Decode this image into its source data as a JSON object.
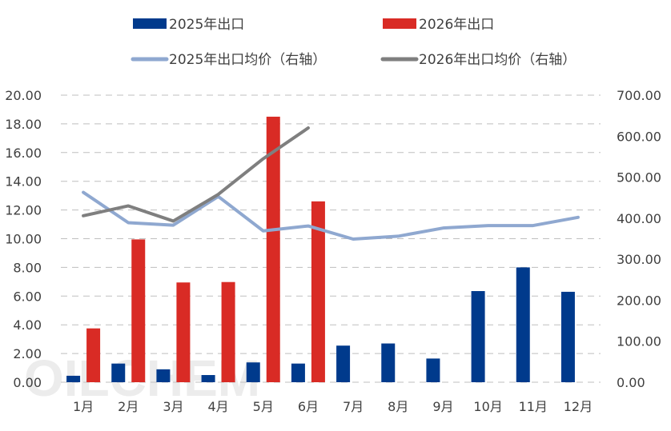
{
  "chart_data": {
    "type": "bar",
    "categories": [
      "1月",
      "2月",
      "3月",
      "4月",
      "5月",
      "6月",
      "7月",
      "8月",
      "9月",
      "10月",
      "11月",
      "12月"
    ],
    "series": [
      {
        "name": "2025年出口",
        "kind": "bar",
        "axis": "left",
        "color": "#003A8C",
        "values": [
          0.45,
          1.3,
          0.9,
          0.5,
          1.38,
          1.3,
          2.55,
          2.7,
          1.65,
          6.35,
          8.0,
          6.3
        ]
      },
      {
        "name": "2026年出口",
        "kind": "bar",
        "axis": "left",
        "color": "#D92B25",
        "values": [
          3.75,
          9.95,
          6.95,
          6.98,
          18.5,
          12.6,
          null,
          null,
          null,
          null,
          null,
          null
        ]
      },
      {
        "name": "2025年出口均价（右轴）",
        "kind": "line",
        "axis": "right",
        "color": "#8FA8D0",
        "values": [
          463,
          389,
          383,
          453,
          369,
          381,
          349,
          356,
          376,
          382,
          382,
          402
        ]
      },
      {
        "name": "2026年出口均价（右轴）",
        "kind": "line",
        "axis": "right",
        "color": "#7F7F7F",
        "values": [
          406,
          430,
          393,
          458,
          545,
          620,
          null,
          null,
          null,
          null,
          null,
          null
        ]
      }
    ],
    "ylim": [
      0,
      20
    ],
    "yticks": [
      "0.00",
      "2.00",
      "4.00",
      "6.00",
      "8.00",
      "10.00",
      "12.00",
      "14.00",
      "16.00",
      "18.00",
      "20.00"
    ],
    "y2lim": [
      0,
      700
    ],
    "y2ticks": [
      "0.00",
      "100.00",
      "200.00",
      "300.00",
      "400.00",
      "500.00",
      "600.00",
      "700.00"
    ],
    "grid": true,
    "legend_position": "top"
  },
  "watermark": "OILCHEM"
}
